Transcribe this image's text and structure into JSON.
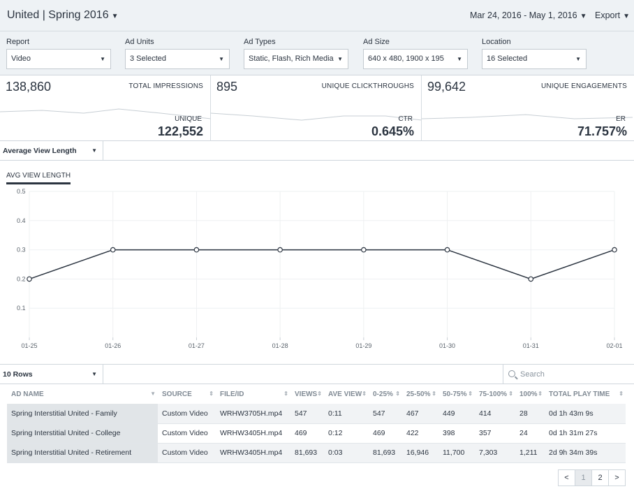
{
  "header": {
    "campaign": "United | Spring 2016",
    "date_range": "Mar 24, 2016 - May 1, 2016",
    "export_label": "Export"
  },
  "filters": [
    {
      "label": "Report",
      "value": "Video"
    },
    {
      "label": "Ad Units",
      "value": "3 Selected"
    },
    {
      "label": "Ad Types",
      "value": "Static, Flash, Rich Media"
    },
    {
      "label": "Ad Size",
      "value": "640 x 480, 1900 x 195"
    },
    {
      "label": "Location",
      "value": "16 Selected"
    }
  ],
  "kpis": [
    {
      "value": "138,860",
      "label": "TOTAL IMPRESSIONS",
      "sub_label": "UNIQUE",
      "sub_value": "122,552"
    },
    {
      "value": "895",
      "label": "UNIQUE CLICKTHROUGHS",
      "sub_label": "CTR",
      "sub_value": "0.645%"
    },
    {
      "value": "99,642",
      "label": "UNIQUE ENGAGEMENTS",
      "sub_label": "ER",
      "sub_value": "71.757%"
    }
  ],
  "metric_select": "Average View Length",
  "chart_tab": "AVG VIEW LENGTH",
  "chart_data": {
    "type": "line",
    "title": "",
    "xlabel": "",
    "ylabel": "",
    "categories": [
      "01-25",
      "01-26",
      "01-27",
      "01-28",
      "01-29",
      "01-30",
      "01-31",
      "02-01"
    ],
    "values": [
      0.2,
      0.3,
      0.3,
      0.3,
      0.3,
      0.3,
      0.2,
      0.3
    ],
    "ylim": [
      0,
      0.5
    ],
    "yticks": [
      "0.1",
      "0.2",
      "0.3",
      "0.4",
      "0.5"
    ],
    "grid": true,
    "line_color": "#2b3440"
  },
  "table": {
    "rows_select": "10 Rows",
    "search_placeholder": "Search",
    "columns": [
      "AD NAME",
      "SOURCE",
      "FILE/ID",
      "VIEWS",
      "AVE VIEW",
      "0-25%",
      "25-50%",
      "50-75%",
      "75-100%",
      "100%",
      "TOTAL PLAY TIME"
    ],
    "rows": [
      [
        "Spring Interstitial United - Family",
        "Custom Video",
        "WRHW3705H.mp4",
        "547",
        "0:11",
        "547",
        "467",
        "449",
        "414",
        "28",
        "0d 1h 43m 9s"
      ],
      [
        "Spring Interstitial United - College",
        "Custom Video",
        "WRHW3405H.mp4",
        "469",
        "0:12",
        "469",
        "422",
        "398",
        "357",
        "24",
        "0d 1h 31m 27s"
      ],
      [
        "Spring Interstitial United - Retirement",
        "Custom Video",
        "WRHW3405H.mp4",
        "81,693",
        "0:03",
        "81,693",
        "16,946",
        "11,700",
        "7,303",
        "1,211",
        "2d 9h 34m 39s"
      ]
    ]
  },
  "pagination": {
    "prev": "<",
    "pages": [
      "1",
      "2"
    ],
    "next": ">",
    "active": "1"
  }
}
